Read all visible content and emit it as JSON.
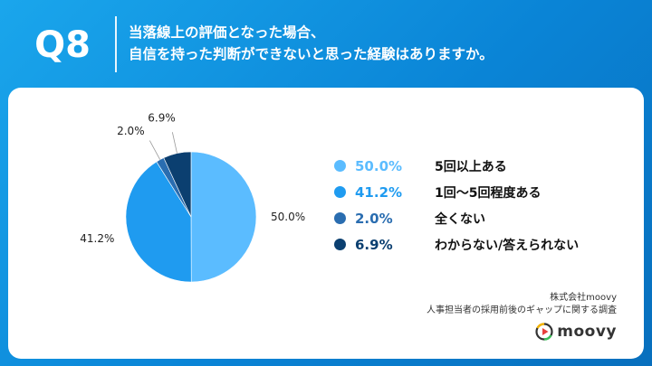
{
  "header": {
    "question_number": "Q8",
    "question_line1": "当落線上の評価となった場合、",
    "question_line2": "自信を持った判断ができないと思った経験はありますか。"
  },
  "chart_data": {
    "type": "pie",
    "categories": [
      "5回以上ある",
      "1回〜5回程度ある",
      "全くない",
      "わからない/答えられない"
    ],
    "values": [
      50.0,
      41.2,
      2.0,
      6.9
    ],
    "labels": [
      "50.0%",
      "41.2%",
      "2.0%",
      "6.9%"
    ],
    "colors": [
      "#5bbcff",
      "#1f9bf0",
      "#2a6db0",
      "#0b3f70"
    ],
    "start_angle_deg": 0,
    "direction": "clockwise"
  },
  "legend": {
    "items": [
      {
        "pct": "50.0%",
        "label": "5回以上ある"
      },
      {
        "pct": "41.2%",
        "label": "1回〜5回程度ある"
      },
      {
        "pct": "2.0%",
        "label": "全くない"
      },
      {
        "pct": "6.9%",
        "label": "わからない/答えられない"
      }
    ]
  },
  "footer": {
    "company": "株式会社moovy",
    "survey": "人事担当者の採用前後のギャップに関する調査",
    "logo_text": "moovy"
  }
}
